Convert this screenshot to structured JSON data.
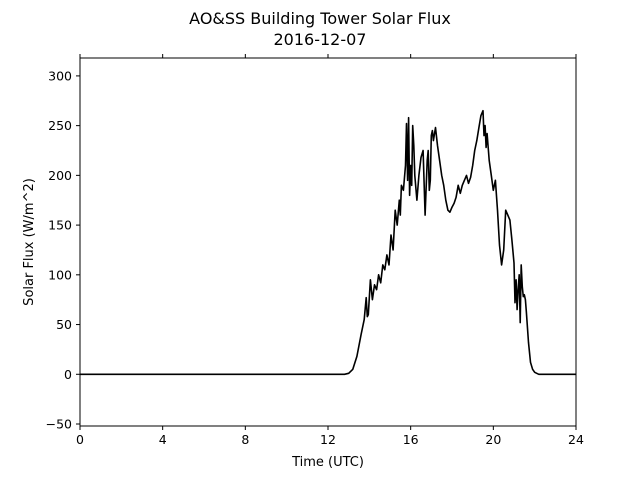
{
  "chart_data": {
    "type": "line",
    "title": "AO&SS Building Tower Solar Flux",
    "subtitle": "2016-12-07",
    "xlabel": "Time (UTC)",
    "ylabel": "Solar Flux (W/m^2)",
    "xlim": [
      0,
      24
    ],
    "ylim": [
      -52,
      318
    ],
    "xticks": [
      0,
      4,
      8,
      12,
      16,
      20,
      24
    ],
    "yticks": [
      -50,
      0,
      50,
      100,
      150,
      200,
      250,
      300
    ],
    "grid": false,
    "legend": "none",
    "line_color": "#000000",
    "series": [
      {
        "x": [
          0,
          12.8,
          13.0,
          13.2,
          13.4,
          13.6,
          13.75,
          13.85,
          13.9,
          13.95,
          14.05,
          14.15,
          14.25,
          14.35,
          14.45,
          14.55,
          14.65,
          14.75,
          14.85,
          14.95,
          15.05,
          15.15,
          15.25,
          15.35,
          15.45,
          15.5,
          15.55,
          15.65,
          15.75,
          15.8,
          15.85,
          15.9,
          15.95,
          16.0,
          16.05,
          16.1,
          16.15,
          16.2,
          16.3,
          16.4,
          16.5,
          16.6,
          16.7,
          16.8,
          16.85,
          16.9,
          16.95,
          17.0,
          17.05,
          17.1,
          17.2,
          17.3,
          17.4,
          17.5,
          17.6,
          17.7,
          17.8,
          17.9,
          18.0,
          18.1,
          18.2,
          18.3,
          18.4,
          18.5,
          18.6,
          18.7,
          18.8,
          18.9,
          19.0,
          19.1,
          19.2,
          19.3,
          19.4,
          19.5,
          19.55,
          19.6,
          19.65,
          19.7,
          19.8,
          19.9,
          20.0,
          20.1,
          20.2,
          20.3,
          20.4,
          20.5,
          20.6,
          20.7,
          20.8,
          20.9,
          21.0,
          21.05,
          21.1,
          21.15,
          21.2,
          21.25,
          21.3,
          21.35,
          21.4,
          21.45,
          21.5,
          21.55,
          21.6,
          21.7,
          21.8,
          21.9,
          22.0,
          22.1,
          22.2,
          22.4,
          22.6,
          23.0,
          24.0
        ],
        "y": [
          0,
          0,
          1,
          5,
          18,
          40,
          55,
          77,
          58,
          60,
          95,
          75,
          90,
          85,
          100,
          92,
          110,
          105,
          120,
          110,
          140,
          125,
          165,
          150,
          175,
          160,
          190,
          185,
          210,
          252,
          195,
          258,
          180,
          210,
          190,
          250,
          230,
          200,
          175,
          200,
          218,
          225,
          160,
          215,
          225,
          185,
          195,
          240,
          245,
          235,
          248,
          230,
          215,
          200,
          190,
          175,
          165,
          163,
          168,
          172,
          178,
          190,
          182,
          190,
          195,
          200,
          192,
          198,
          210,
          225,
          235,
          248,
          260,
          265,
          240,
          250,
          228,
          242,
          215,
          200,
          185,
          195,
          165,
          130,
          110,
          125,
          165,
          160,
          155,
          135,
          112,
          72,
          95,
          65,
          85,
          100,
          52,
          110,
          88,
          78,
          80,
          75,
          62,
          32,
          12,
          5,
          2,
          1,
          0,
          0,
          0,
          0,
          0
        ]
      }
    ]
  }
}
